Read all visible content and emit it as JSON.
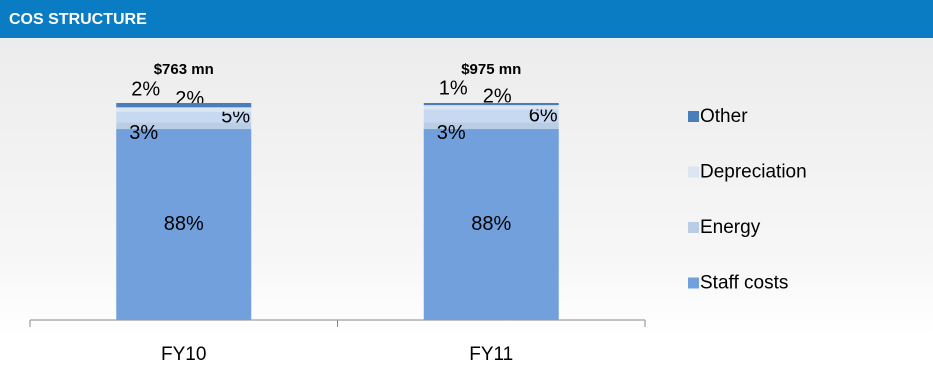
{
  "chart_data": {
    "type": "stacked_bar",
    "title": "COS STRUCTURE",
    "categories": [
      "FY10",
      "FY11"
    ],
    "totals": {
      "values": [
        763,
        975
      ],
      "value_labels": [
        "$763 mn",
        "$975 mn"
      ]
    },
    "series": [
      {
        "name": "Staff costs",
        "color": "#71a0dc",
        "values": [
          88,
          88
        ],
        "value_labels": [
          "88%",
          "88%"
        ]
      },
      {
        "name": "Energy",
        "color": "#b9cde5",
        "values": [
          3,
          3
        ],
        "value_labels": [
          "3%",
          "3%"
        ]
      },
      {
        "color": "#c6d9f1",
        "values": [
          5,
          6
        ],
        "value_labels": [
          "5%",
          "6%"
        ]
      },
      {
        "name": "Depreciation",
        "color": "#dce6f2",
        "values": [
          2,
          2
        ],
        "value_labels": [
          "2%",
          "2%"
        ]
      },
      {
        "name": "Other",
        "color": "#4a7ebb",
        "values": [
          2,
          1
        ],
        "value_labels": [
          "2%",
          "1%"
        ]
      }
    ],
    "ylim": [
      0,
      100
    ],
    "legend": "right"
  }
}
